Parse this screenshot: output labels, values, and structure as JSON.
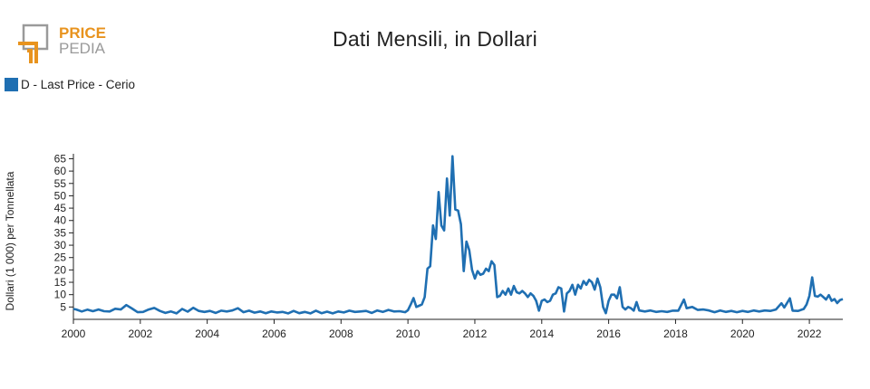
{
  "logo": {
    "line1": "PRICE",
    "line2": "PEDIA",
    "accent_color": "#e8931e",
    "frame_color": "#9a9a9a"
  },
  "chart_data": {
    "type": "line",
    "title": "Dati Mensili, in Dollari",
    "ylabel": "Dollari (1 000) per Tonnellata",
    "xlabel": "",
    "series": [
      {
        "name": "D - Last Price - Cerio",
        "color": "#1f6fb2",
        "points": [
          [
            "2000-01",
            4.2
          ],
          [
            "2000-02",
            4.0
          ],
          [
            "2000-04",
            3.2
          ],
          [
            "2000-06",
            3.9
          ],
          [
            "2000-08",
            3.3
          ],
          [
            "2000-10",
            4.0
          ],
          [
            "2000-12",
            3.3
          ],
          [
            "2001-02",
            3.2
          ],
          [
            "2001-04",
            4.3
          ],
          [
            "2001-06",
            4.0
          ],
          [
            "2001-08",
            5.8
          ],
          [
            "2001-10",
            4.4
          ],
          [
            "2001-12",
            2.9
          ],
          [
            "2002-02",
            3.0
          ],
          [
            "2002-04",
            4.0
          ],
          [
            "2002-06",
            4.6
          ],
          [
            "2002-08",
            3.4
          ],
          [
            "2002-10",
            2.6
          ],
          [
            "2002-12",
            3.2
          ],
          [
            "2003-02",
            2.4
          ],
          [
            "2003-04",
            4.2
          ],
          [
            "2003-06",
            3.1
          ],
          [
            "2003-08",
            4.7
          ],
          [
            "2003-10",
            3.4
          ],
          [
            "2003-12",
            3.0
          ],
          [
            "2004-02",
            3.4
          ],
          [
            "2004-04",
            2.6
          ],
          [
            "2004-06",
            3.5
          ],
          [
            "2004-08",
            3.2
          ],
          [
            "2004-10",
            3.6
          ],
          [
            "2004-12",
            4.5
          ],
          [
            "2005-02",
            2.9
          ],
          [
            "2005-04",
            3.5
          ],
          [
            "2005-06",
            2.7
          ],
          [
            "2005-08",
            3.2
          ],
          [
            "2005-10",
            2.5
          ],
          [
            "2005-12",
            3.2
          ],
          [
            "2006-02",
            2.8
          ],
          [
            "2006-04",
            3.0
          ],
          [
            "2006-06",
            2.4
          ],
          [
            "2006-08",
            3.4
          ],
          [
            "2006-10",
            2.5
          ],
          [
            "2006-12",
            3.0
          ],
          [
            "2007-02",
            2.4
          ],
          [
            "2007-04",
            3.5
          ],
          [
            "2007-06",
            2.5
          ],
          [
            "2007-08",
            3.1
          ],
          [
            "2007-10",
            2.4
          ],
          [
            "2007-12",
            3.2
          ],
          [
            "2008-02",
            2.8
          ],
          [
            "2008-04",
            3.5
          ],
          [
            "2008-06",
            3.0
          ],
          [
            "2008-08",
            3.2
          ],
          [
            "2008-10",
            3.4
          ],
          [
            "2008-12",
            2.6
          ],
          [
            "2009-02",
            3.6
          ],
          [
            "2009-04",
            3.0
          ],
          [
            "2009-06",
            3.8
          ],
          [
            "2009-08",
            3.2
          ],
          [
            "2009-10",
            3.3
          ],
          [
            "2009-12",
            2.9
          ],
          [
            "2010-01",
            3.7
          ],
          [
            "2010-02",
            6.0
          ],
          [
            "2010-03",
            8.6
          ],
          [
            "2010-04",
            5.0
          ],
          [
            "2010-05",
            5.5
          ],
          [
            "2010-06",
            6.0
          ],
          [
            "2010-07",
            9.0
          ],
          [
            "2010-08",
            20.5
          ],
          [
            "2010-09",
            21.5
          ],
          [
            "2010-10",
            38.0
          ],
          [
            "2010-11",
            32.5
          ],
          [
            "2010-12",
            51.5
          ],
          [
            "2011-01",
            38.0
          ],
          [
            "2011-02",
            36.0
          ],
          [
            "2011-03",
            57.0
          ],
          [
            "2011-04",
            42.0
          ],
          [
            "2011-05",
            66.0
          ],
          [
            "2011-06",
            44.5
          ],
          [
            "2011-07",
            44.0
          ],
          [
            "2011-08",
            38.5
          ],
          [
            "2011-09",
            19.5
          ],
          [
            "2011-10",
            31.5
          ],
          [
            "2011-11",
            28.0
          ],
          [
            "2011-12",
            20.0
          ],
          [
            "2012-01",
            16.5
          ],
          [
            "2012-02",
            19.5
          ],
          [
            "2012-03",
            18.0
          ],
          [
            "2012-04",
            18.5
          ],
          [
            "2012-05",
            20.5
          ],
          [
            "2012-06",
            19.5
          ],
          [
            "2012-07",
            23.5
          ],
          [
            "2012-08",
            22.0
          ],
          [
            "2012-09",
            9.0
          ],
          [
            "2012-10",
            9.5
          ],
          [
            "2012-11",
            11.5
          ],
          [
            "2012-12",
            10.0
          ],
          [
            "2013-01",
            12.5
          ],
          [
            "2013-02",
            10.0
          ],
          [
            "2013-03",
            13.5
          ],
          [
            "2013-04",
            11.0
          ],
          [
            "2013-05",
            10.5
          ],
          [
            "2013-06",
            11.5
          ],
          [
            "2013-07",
            10.5
          ],
          [
            "2013-08",
            9.0
          ],
          [
            "2013-09",
            10.5
          ],
          [
            "2013-10",
            9.5
          ],
          [
            "2013-11",
            7.5
          ],
          [
            "2013-12",
            3.5
          ],
          [
            "2014-01",
            7.5
          ],
          [
            "2014-02",
            8.0
          ],
          [
            "2014-03",
            7.0
          ],
          [
            "2014-04",
            7.5
          ],
          [
            "2014-05",
            10.0
          ],
          [
            "2014-06",
            10.5
          ],
          [
            "2014-07",
            13.0
          ],
          [
            "2014-08",
            12.5
          ],
          [
            "2014-09",
            3.2
          ],
          [
            "2014-10",
            10.5
          ],
          [
            "2014-11",
            11.5
          ],
          [
            "2014-12",
            14.0
          ],
          [
            "2015-01",
            10.0
          ],
          [
            "2015-02",
            14.0
          ],
          [
            "2015-03",
            12.5
          ],
          [
            "2015-04",
            15.5
          ],
          [
            "2015-05",
            14.0
          ],
          [
            "2015-06",
            16.0
          ],
          [
            "2015-07",
            15.0
          ],
          [
            "2015-08",
            12.0
          ],
          [
            "2015-09",
            16.5
          ],
          [
            "2015-10",
            13.0
          ],
          [
            "2015-11",
            5.0
          ],
          [
            "2015-12",
            2.5
          ],
          [
            "2016-01",
            7.5
          ],
          [
            "2016-02",
            10.0
          ],
          [
            "2016-03",
            10.0
          ],
          [
            "2016-04",
            8.5
          ],
          [
            "2016-05",
            13.0
          ],
          [
            "2016-06",
            5.0
          ],
          [
            "2016-07",
            4.0
          ],
          [
            "2016-08",
            5.0
          ],
          [
            "2016-09",
            4.5
          ],
          [
            "2016-10",
            3.5
          ],
          [
            "2016-11",
            7.0
          ],
          [
            "2016-12",
            3.6
          ],
          [
            "2017-02",
            3.2
          ],
          [
            "2017-04",
            3.6
          ],
          [
            "2017-06",
            3.0
          ],
          [
            "2017-08",
            3.3
          ],
          [
            "2017-10",
            3.0
          ],
          [
            "2017-12",
            3.5
          ],
          [
            "2018-02",
            3.5
          ],
          [
            "2018-04",
            8.0
          ],
          [
            "2018-05",
            4.5
          ],
          [
            "2018-07",
            5.0
          ],
          [
            "2018-09",
            3.8
          ],
          [
            "2018-11",
            4.0
          ],
          [
            "2019-01",
            3.6
          ],
          [
            "2019-03",
            2.9
          ],
          [
            "2019-05",
            3.6
          ],
          [
            "2019-07",
            3.0
          ],
          [
            "2019-09",
            3.4
          ],
          [
            "2019-11",
            2.9
          ],
          [
            "2020-01",
            3.4
          ],
          [
            "2020-03",
            3.0
          ],
          [
            "2020-05",
            3.6
          ],
          [
            "2020-07",
            3.2
          ],
          [
            "2020-09",
            3.6
          ],
          [
            "2020-11",
            3.4
          ],
          [
            "2021-01",
            4.0
          ],
          [
            "2021-03",
            6.5
          ],
          [
            "2021-04",
            4.8
          ],
          [
            "2021-06",
            8.5
          ],
          [
            "2021-07",
            3.5
          ],
          [
            "2021-09",
            3.4
          ],
          [
            "2021-11",
            4.2
          ],
          [
            "2021-12",
            6.0
          ],
          [
            "2022-01",
            9.5
          ],
          [
            "2022-02",
            17.0
          ],
          [
            "2022-03",
            9.5
          ],
          [
            "2022-04",
            9.2
          ],
          [
            "2022-05",
            10.0
          ],
          [
            "2022-06",
            9.0
          ],
          [
            "2022-07",
            8.0
          ],
          [
            "2022-08",
            9.8
          ],
          [
            "2022-09",
            7.5
          ],
          [
            "2022-10",
            8.2
          ],
          [
            "2022-11",
            6.6
          ],
          [
            "2022-12",
            7.8
          ],
          [
            "2023-01",
            8.2
          ]
        ]
      }
    ],
    "x_ticks": [
      "2000",
      "2002",
      "2004",
      "2006",
      "2008",
      "2010",
      "2012",
      "2014",
      "2016",
      "2018",
      "2020",
      "2022"
    ],
    "y_ticks": [
      5,
      10,
      15,
      20,
      25,
      30,
      35,
      40,
      45,
      50,
      55,
      60,
      65
    ],
    "xlim": [
      "2000-01",
      "2023-01"
    ],
    "ylim": [
      0,
      67
    ],
    "grid": false,
    "legend_position": "top-left"
  }
}
